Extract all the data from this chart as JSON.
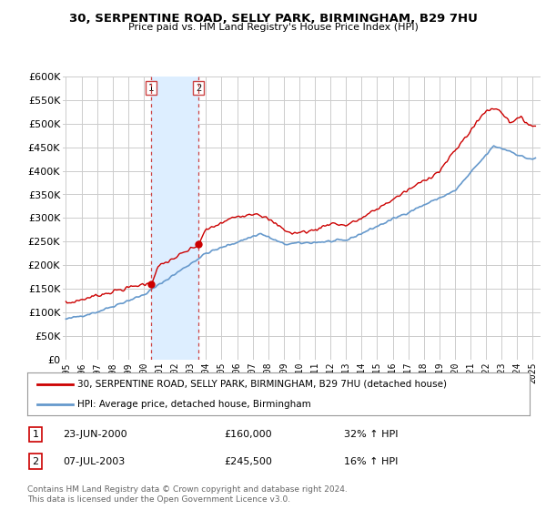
{
  "title": "30, SERPENTINE ROAD, SELLY PARK, BIRMINGHAM, B29 7HU",
  "subtitle": "Price paid vs. HM Land Registry's House Price Index (HPI)",
  "legend_label_red": "30, SERPENTINE ROAD, SELLY PARK, BIRMINGHAM, B29 7HU (detached house)",
  "legend_label_blue": "HPI: Average price, detached house, Birmingham",
  "table": [
    {
      "num": "1",
      "date": "23-JUN-2000",
      "price": "£160,000",
      "hpi": "32% ↑ HPI"
    },
    {
      "num": "2",
      "date": "07-JUL-2003",
      "price": "£245,500",
      "hpi": "16% ↑ HPI"
    }
  ],
  "footnote": "Contains HM Land Registry data © Crown copyright and database right 2024.\nThis data is licensed under the Open Government Licence v3.0.",
  "vline1_year": 2000.47,
  "vline2_year": 2003.52,
  "sale1_x": 2000.47,
  "sale1_y": 160000,
  "sale2_x": 2003.52,
  "sale2_y": 245500,
  "ylim": [
    0,
    600000
  ],
  "xlim_start": 1994.8,
  "xlim_end": 2025.5,
  "background_color": "#ffffff",
  "grid_color": "#cccccc",
  "red_color": "#cc0000",
  "blue_color": "#6699cc",
  "shade_color": "#ddeeff",
  "vline_color": "#cc4444",
  "title_fontsize": 9.5,
  "subtitle_fontsize": 8,
  "tick_fontsize": 7,
  "ytick_fontsize": 8
}
